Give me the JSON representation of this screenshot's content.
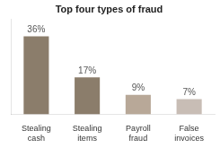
{
  "chart_data": {
    "type": "bar",
    "title": "Top four types of fraud",
    "categories": [
      "Stealing\ncash",
      "Stealing\nitems",
      "Payroll\nfraud",
      "False\ninvoices"
    ],
    "values": [
      36,
      17,
      9,
      7
    ],
    "value_labels": [
      "36%",
      "17%",
      "9%",
      "7%"
    ],
    "colors": [
      "#8B7D6B",
      "#8B7D6B",
      "#B8A898",
      "#C8BDB5"
    ],
    "ylim": [
      0,
      44
    ],
    "grid": false,
    "data_labels": true,
    "tick_labels": "x"
  }
}
